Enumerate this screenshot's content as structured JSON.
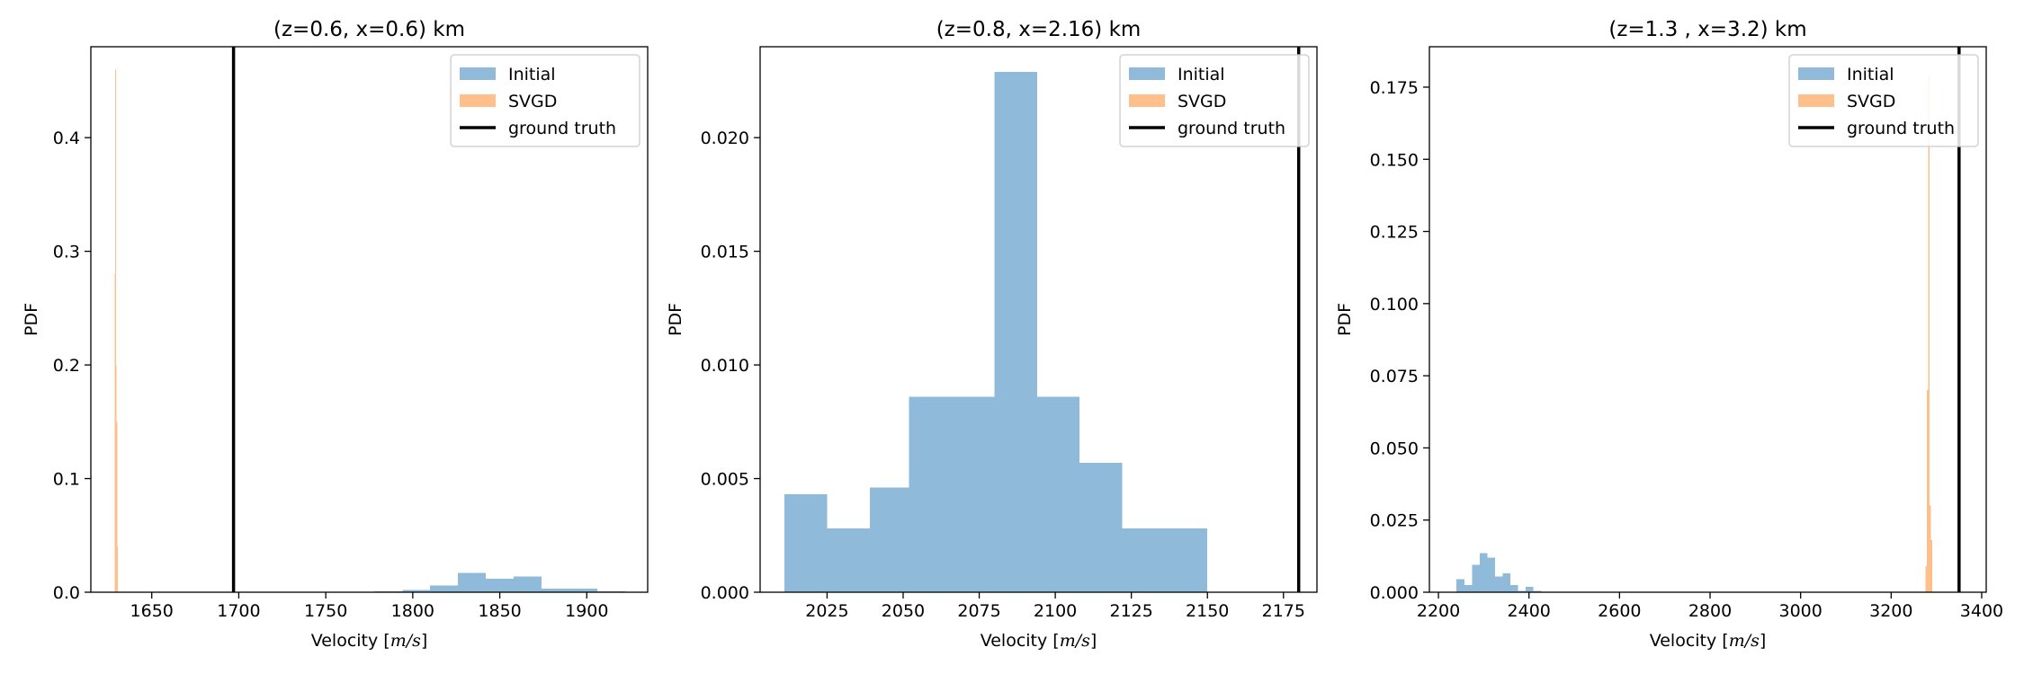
{
  "chart_data": [
    {
      "type": "histogram",
      "title": "(z=0.6, x=0.6) km",
      "xlabel": "Velocity [m/s]",
      "xlabel_text": "Velocity [",
      "xlabel_unit": "m/s",
      "xlabel_close": "]",
      "ylabel": "PDF",
      "xlim": [
        1615,
        1935
      ],
      "ylim": [
        0,
        0.48
      ],
      "xticks": [
        1650,
        1700,
        1750,
        1800,
        1850,
        1900
      ],
      "xtick_labels": [
        "1650",
        "1700",
        "1750",
        "1800",
        "1850",
        "1900"
      ],
      "yticks": [
        0.0,
        0.1,
        0.2,
        0.3,
        0.4
      ],
      "ytick_labels": [
        "0.0",
        "0.1",
        "0.2",
        "0.3",
        "0.4"
      ],
      "legend": {
        "placement": "top-right",
        "entries": [
          {
            "label": "Initial",
            "kind": "patch",
            "color": "#8fbad9"
          },
          {
            "label": "SVGD",
            "kind": "patch",
            "color": "#ffbf8a"
          },
          {
            "label": "ground truth",
            "kind": "line",
            "color": "#000000"
          }
        ]
      },
      "series": [
        {
          "name": "Initial",
          "color": "#8fbad9",
          "bins": [
            {
              "x0": 1762,
              "x1": 1778,
              "y": 0.0005
            },
            {
              "x0": 1778,
              "x1": 1794,
              "y": 0.0008
            },
            {
              "x0": 1794,
              "x1": 1810,
              "y": 0.002
            },
            {
              "x0": 1810,
              "x1": 1826,
              "y": 0.006
            },
            {
              "x0": 1826,
              "x1": 1842,
              "y": 0.017
            },
            {
              "x0": 1842,
              "x1": 1858,
              "y": 0.012
            },
            {
              "x0": 1858,
              "x1": 1874,
              "y": 0.014
            },
            {
              "x0": 1874,
              "x1": 1890,
              "y": 0.003
            },
            {
              "x0": 1890,
              "x1": 1906,
              "y": 0.003
            },
            {
              "x0": 1906,
              "x1": 1922,
              "y": 0.0008
            }
          ]
        },
        {
          "name": "SVGD",
          "color": "#ffbf8a",
          "bins": [
            {
              "x0": 1628.6,
              "x1": 1629.0,
              "y": 0.28
            },
            {
              "x0": 1629.0,
              "x1": 1629.4,
              "y": 0.46
            },
            {
              "x0": 1629.4,
              "x1": 1629.8,
              "y": 0.2
            },
            {
              "x0": 1629.8,
              "x1": 1630.2,
              "y": 0.15
            },
            {
              "x0": 1630.2,
              "x1": 1630.6,
              "y": 0.04
            }
          ]
        }
      ],
      "ground_truth": 1697
    },
    {
      "type": "histogram",
      "title": "(z=0.8, x=2.16) km",
      "xlabel": "Velocity [m/s]",
      "xlabel_text": "Velocity [",
      "xlabel_unit": "m/s",
      "xlabel_close": "]",
      "ylabel": "PDF",
      "xlim": [
        2003,
        2186
      ],
      "ylim": [
        0,
        0.024
      ],
      "xticks": [
        2025,
        2050,
        2075,
        2100,
        2125,
        2150,
        2175
      ],
      "xtick_labels": [
        "2025",
        "2050",
        "2075",
        "2100",
        "2125",
        "2150",
        "2175"
      ],
      "yticks": [
        0.0,
        0.005,
        0.01,
        0.015,
        0.02
      ],
      "ytick_labels": [
        "0.000",
        "0.005",
        "0.010",
        "0.015",
        "0.020"
      ],
      "legend": {
        "placement": "top-right",
        "entries": [
          {
            "label": "Initial",
            "kind": "patch",
            "color": "#8fbad9"
          },
          {
            "label": "SVGD",
            "kind": "patch",
            "color": "#ffbf8a"
          },
          {
            "label": "ground truth",
            "kind": "line",
            "color": "#000000"
          }
        ]
      },
      "series": [
        {
          "name": "Initial",
          "color": "#8fbad9",
          "bins": [
            {
              "x0": 2011,
              "x1": 2025,
              "y": 0.0043
            },
            {
              "x0": 2025,
              "x1": 2039,
              "y": 0.0028
            },
            {
              "x0": 2039,
              "x1": 2052,
              "y": 0.0046
            },
            {
              "x0": 2052,
              "x1": 2066,
              "y": 0.0086
            },
            {
              "x0": 2066,
              "x1": 2080,
              "y": 0.0086
            },
            {
              "x0": 2080,
              "x1": 2094,
              "y": 0.0229
            },
            {
              "x0": 2094,
              "x1": 2108,
              "y": 0.0086
            },
            {
              "x0": 2108,
              "x1": 2122,
              "y": 0.0057
            },
            {
              "x0": 2122,
              "x1": 2136,
              "y": 0.0028
            },
            {
              "x0": 2136,
              "x1": 2150,
              "y": 0.0028
            }
          ]
        },
        {
          "name": "SVGD",
          "color": "#ffbf8a",
          "bins": []
        }
      ],
      "ground_truth": 2180
    },
    {
      "type": "histogram",
      "title": "(z=1.3 , x=3.2) km",
      "xlabel": "Velocity [m/s]",
      "xlabel_text": "Velocity [",
      "xlabel_unit": "m/s",
      "xlabel_close": "]",
      "ylabel": "PDF",
      "xlim": [
        2180,
        3410
      ],
      "ylim": [
        0,
        0.189
      ],
      "xticks": [
        2200,
        2400,
        2600,
        2800,
        3000,
        3200,
        3400
      ],
      "xtick_labels": [
        "2200",
        "2400",
        "2600",
        "2800",
        "3000",
        "3200",
        "3400"
      ],
      "yticks": [
        0.0,
        0.025,
        0.05,
        0.075,
        0.1,
        0.125,
        0.15,
        0.175
      ],
      "ytick_labels": [
        "0.000",
        "0.025",
        "0.050",
        "0.075",
        "0.100",
        "0.125",
        "0.150",
        "0.175"
      ],
      "legend": {
        "placement": "top-right",
        "entries": [
          {
            "label": "Initial",
            "kind": "patch",
            "color": "#8fbad9"
          },
          {
            "label": "SVGD",
            "kind": "patch",
            "color": "#ffbf8a"
          },
          {
            "label": "ground truth",
            "kind": "line",
            "color": "#000000"
          }
        ]
      },
      "series": [
        {
          "name": "Initial",
          "color": "#8fbad9",
          "bins": [
            {
              "x0": 2240,
              "x1": 2257,
              "y": 0.0045
            },
            {
              "x0": 2257,
              "x1": 2274,
              "y": 0.0025
            },
            {
              "x0": 2274,
              "x1": 2291,
              "y": 0.0095
            },
            {
              "x0": 2291,
              "x1": 2308,
              "y": 0.0135
            },
            {
              "x0": 2308,
              "x1": 2325,
              "y": 0.012
            },
            {
              "x0": 2325,
              "x1": 2342,
              "y": 0.0055
            },
            {
              "x0": 2342,
              "x1": 2359,
              "y": 0.0065
            },
            {
              "x0": 2359,
              "x1": 2376,
              "y": 0.0025
            },
            {
              "x0": 2376,
              "x1": 2393,
              "y": 0.0005
            },
            {
              "x0": 2393,
              "x1": 2410,
              "y": 0.0018
            },
            {
              "x0": 2410,
              "x1": 2427,
              "y": 0.0004
            }
          ]
        },
        {
          "name": "SVGD",
          "color": "#ffbf8a",
          "bins": [
            {
              "x0": 3276,
              "x1": 3279,
              "y": 0.009
            },
            {
              "x0": 3279,
              "x1": 3282,
              "y": 0.07
            },
            {
              "x0": 3282,
              "x1": 3285,
              "y": 0.179
            },
            {
              "x0": 3285,
              "x1": 3288,
              "y": 0.03
            },
            {
              "x0": 3288,
              "x1": 3291,
              "y": 0.018
            }
          ]
        }
      ],
      "ground_truth": 3350
    }
  ]
}
